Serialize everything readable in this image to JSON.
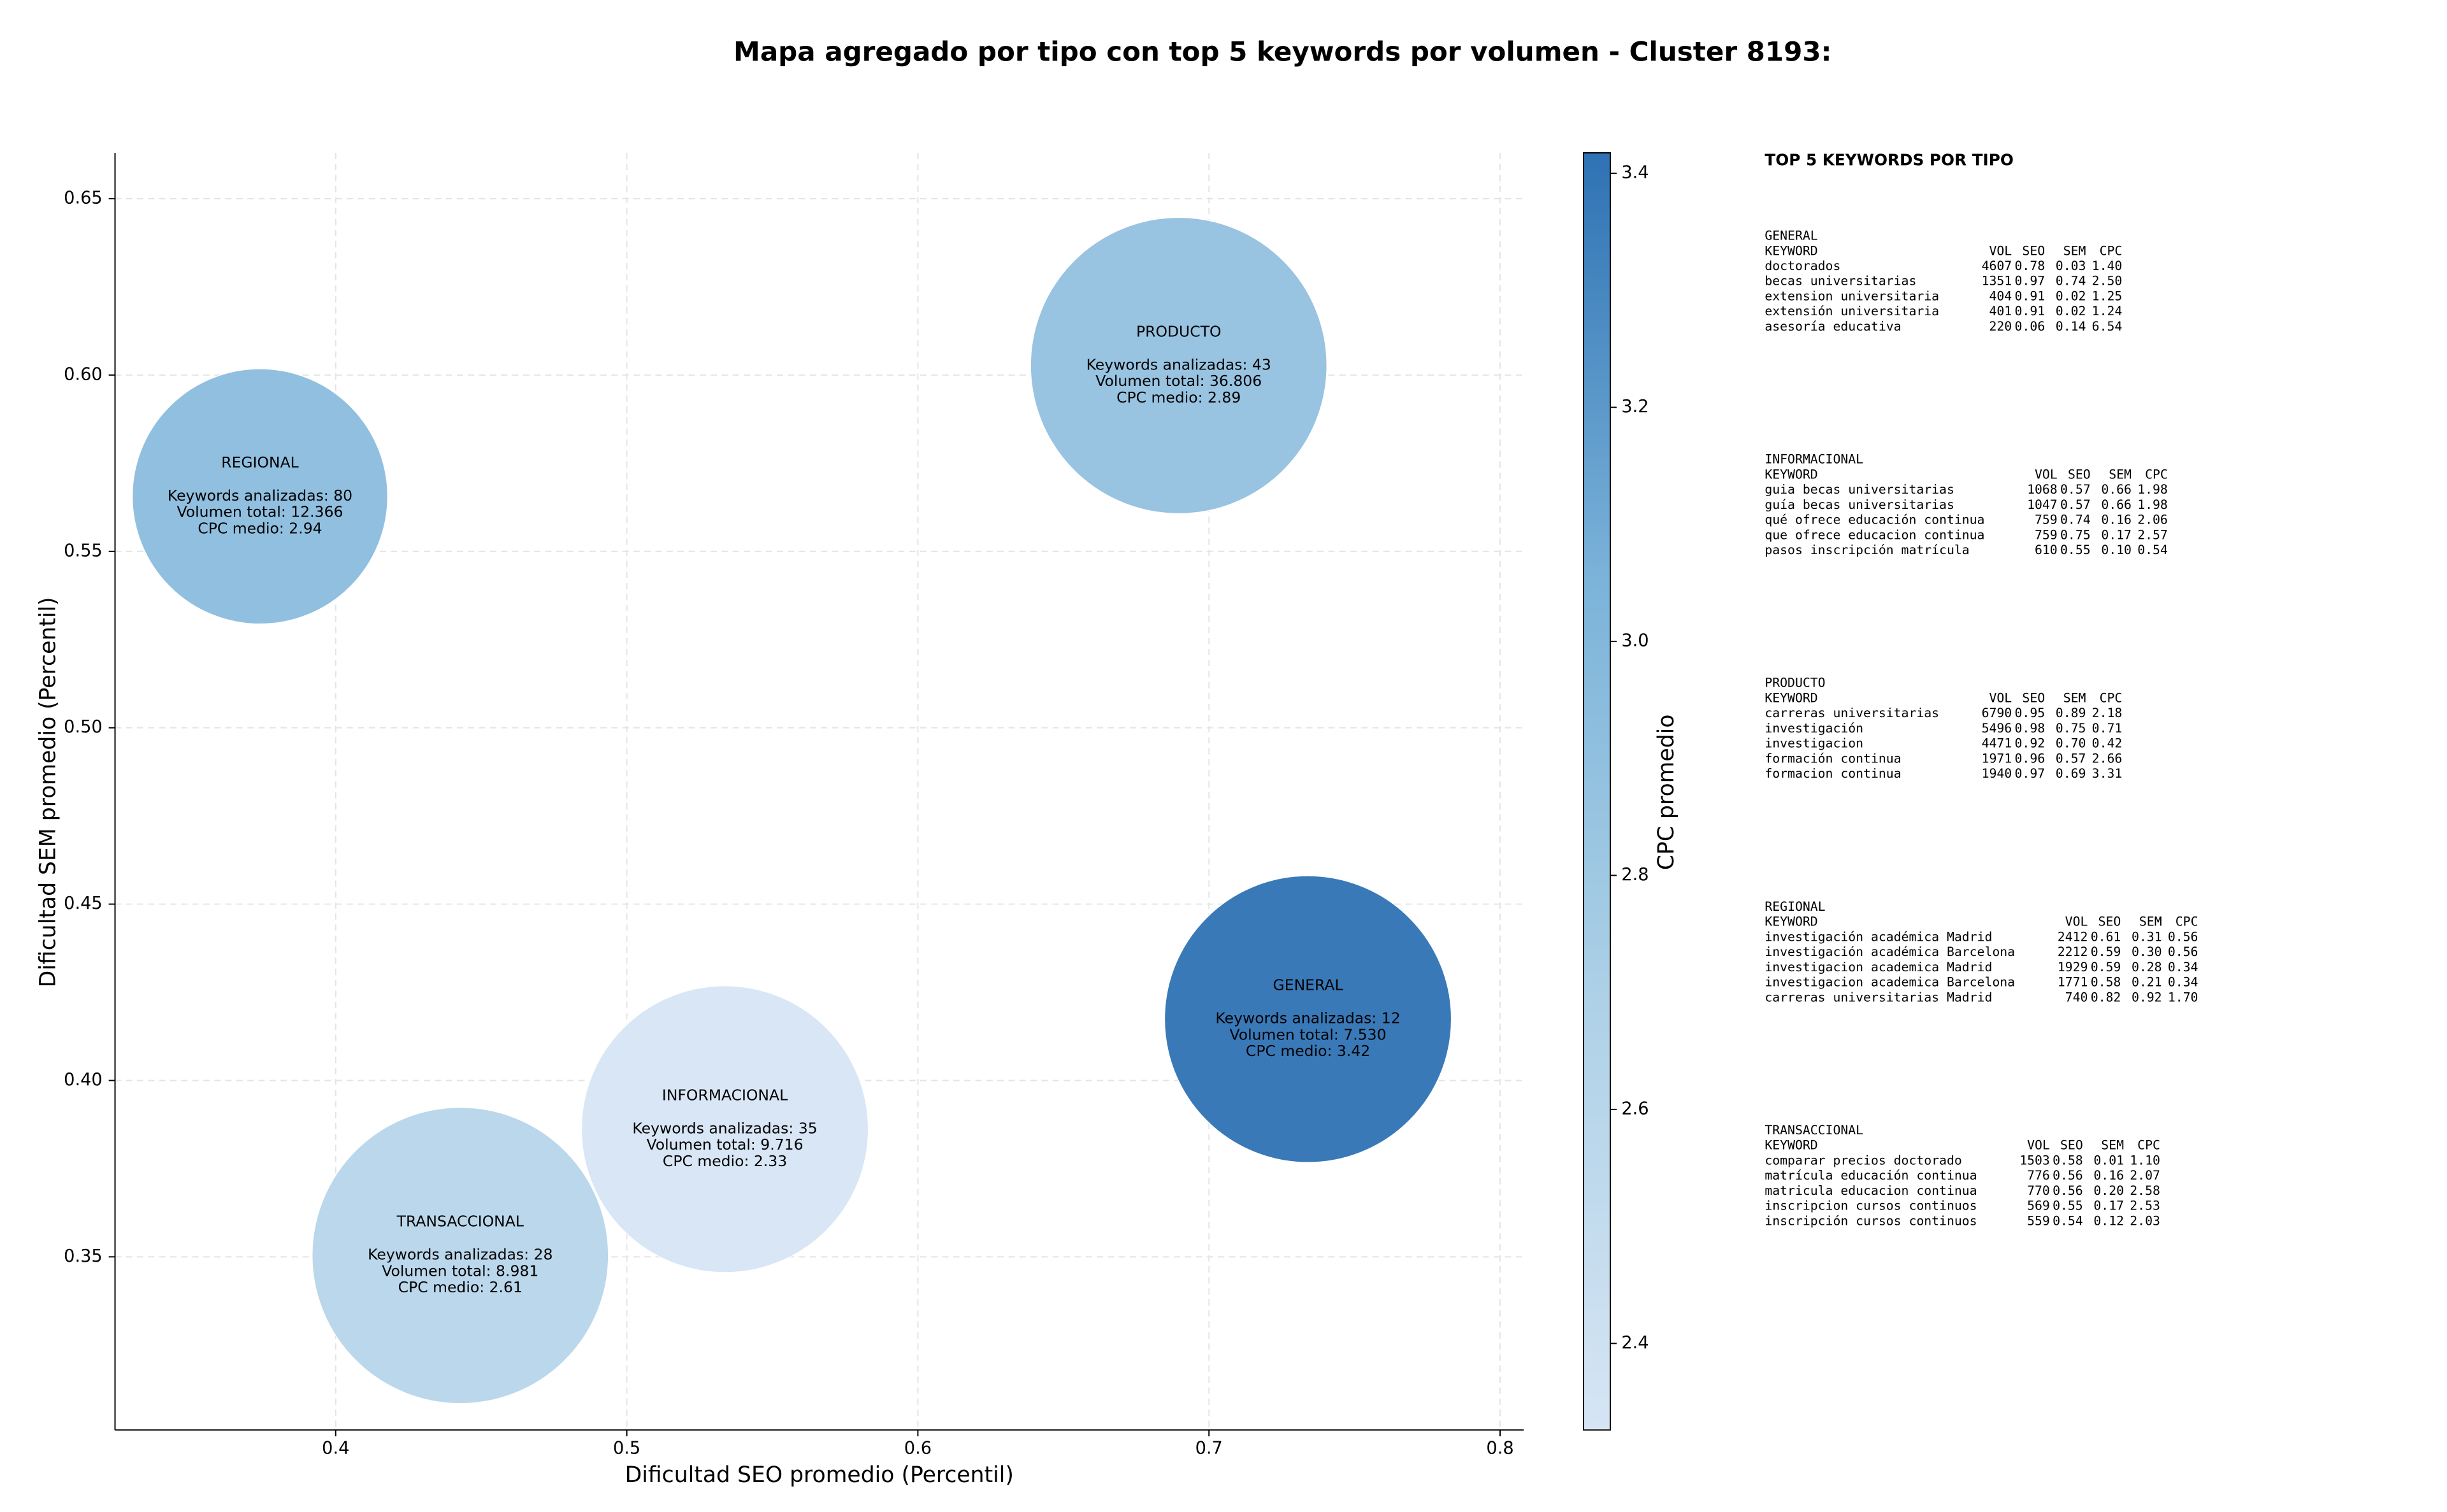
{
  "chart_data": {
    "type": "bubble",
    "title": "Mapa agregado por tipo con top 5 keywords por volumen - Cluster 8193:",
    "xlabel": "Dificultad SEO promedio (Percentil)",
    "ylabel": "Dificultad SEM promedio (Percentil)",
    "categories": [
      "GENERAL",
      "PRODUCTO",
      "REGIONAL",
      "INFORMACIONAL",
      "TRANSACCIONAL"
    ],
    "x": [
      0.734,
      0.6896,
      0.374,
      0.5337,
      0.4428
    ],
    "values": [
      0.4174,
      0.6027,
      0.5656,
      0.3862,
      0.3504
    ],
    "cpc": [
      3.42,
      2.89,
      2.94,
      2.33,
      2.61
    ],
    "annotations": [
      [
        "Keywords analizadas: 12",
        "Volumen total: 7.530",
        "CPC medio: 3.42"
      ],
      [
        "Keywords analizadas: 43",
        "Volumen total: 36.806",
        "CPC medio: 2.89"
      ],
      [
        "Keywords analizadas: 80",
        "Volumen total: 12.366",
        "CPC medio: 2.94"
      ],
      [
        "Keywords analizadas: 35",
        "Volumen total: 9.716",
        "CPC medio: 2.33"
      ],
      [
        "Keywords analizadas: 28",
        "Volumen total: 8.981",
        "CPC medio: 2.61"
      ]
    ],
    "xlim": [
      0.3242,
      0.8081
    ],
    "ylim": [
      0.3009,
      0.663
    ],
    "xticks": [
      0.4,
      0.5,
      0.6,
      0.7,
      0.8
    ],
    "yticks": [
      0.35,
      {
        "value": 0.4,
        "label": "0.40"
      },
      0.45,
      {
        "value": 0.5,
        "label": "0.50"
      },
      0.55,
      {
        "value": 0.6,
        "label": "0.60"
      },
      0.65
    ],
    "grid": true,
    "colorbar": {
      "label": "CPC promedio",
      "lim": [
        2.326,
        3.4175
      ],
      "ticks": [
        2.4,
        2.6,
        2.8,
        {
          "value": 3.0,
          "label": "3.0"
        },
        3.2,
        3.4
      ],
      "colormap": [
        "#d6e5f4",
        "#aed1e7",
        "#7bb3d9",
        "#2e72b4"
      ]
    }
  },
  "keywords_panel": {
    "title": "TOP 5 KEYWORDS POR TIPO",
    "header": [
      "KEYWORD",
      "VOL",
      "SEO",
      "SEM",
      "CPC"
    ],
    "groups": [
      {
        "name": "GENERAL",
        "rows": [
          [
            "doctorados",
            "4607",
            "0.78",
            "0.03",
            "1.40"
          ],
          [
            "becas universitarias",
            "1351",
            "0.97",
            "0.74",
            "2.50"
          ],
          [
            "extension universitaria",
            "404",
            "0.91",
            "0.02",
            "1.25"
          ],
          [
            "extensión universitaria",
            "401",
            "0.91",
            "0.02",
            "1.24"
          ],
          [
            "asesoría educativa",
            "220",
            "0.06",
            "0.14",
            "6.54"
          ]
        ]
      },
      {
        "name": "INFORMACIONAL",
        "rows": [
          [
            "guia becas universitarias",
            "1068",
            "0.57",
            "0.66",
            "1.98"
          ],
          [
            "guía becas universitarias",
            "1047",
            "0.57",
            "0.66",
            "1.98"
          ],
          [
            "qué ofrece educación continua",
            "759",
            "0.74",
            "0.16",
            "2.06"
          ],
          [
            "que ofrece educacion continua",
            "759",
            "0.75",
            "0.17",
            "2.57"
          ],
          [
            "pasos inscripción matrícula",
            "610",
            "0.55",
            "0.10",
            "0.54"
          ]
        ]
      },
      {
        "name": "PRODUCTO",
        "rows": [
          [
            "carreras universitarias",
            "6790",
            "0.95",
            "0.89",
            "2.18"
          ],
          [
            "investigación",
            "5496",
            "0.98",
            "0.75",
            "0.71"
          ],
          [
            "investigacion",
            "4471",
            "0.92",
            "0.70",
            "0.42"
          ],
          [
            "formación continua",
            "1971",
            "0.96",
            "0.57",
            "2.66"
          ],
          [
            "formacion continua",
            "1940",
            "0.97",
            "0.69",
            "3.31"
          ]
        ]
      },
      {
        "name": "REGIONAL",
        "rows": [
          [
            "investigación académica Madrid",
            "2412",
            "0.61",
            "0.31",
            "0.56"
          ],
          [
            "investigación académica Barcelona",
            "2212",
            "0.59",
            "0.30",
            "0.56"
          ],
          [
            "investigacion academica Madrid",
            "1929",
            "0.59",
            "0.28",
            "0.34"
          ],
          [
            "investigacion academica Barcelona",
            "1771",
            "0.58",
            "0.21",
            "0.34"
          ],
          [
            "carreras universitarias Madrid",
            "740",
            "0.82",
            "0.92",
            "1.70"
          ]
        ]
      },
      {
        "name": "TRANSACCIONAL",
        "rows": [
          [
            "comparar precios doctorado",
            "1503",
            "0.58",
            "0.01",
            "1.10"
          ],
          [
            "matrícula educación continua",
            "776",
            "0.56",
            "0.16",
            "2.07"
          ],
          [
            "matricula educacion continua",
            "770",
            "0.56",
            "0.20",
            "2.58"
          ],
          [
            "inscripcion cursos continuos",
            "569",
            "0.55",
            "0.17",
            "2.53"
          ],
          [
            "inscripción cursos continuos",
            "559",
            "0.54",
            "0.12",
            "2.03"
          ]
        ]
      }
    ]
  }
}
